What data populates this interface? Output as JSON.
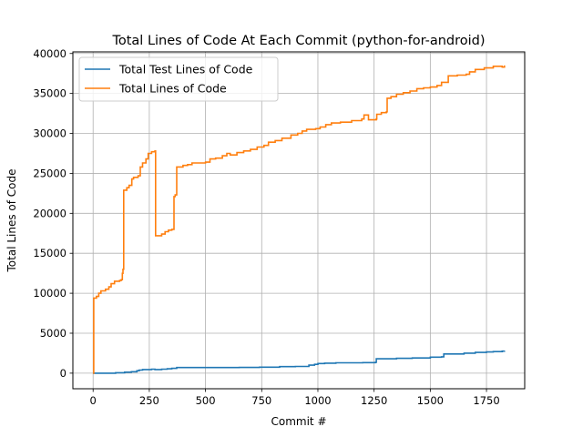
{
  "chart_data": {
    "type": "line",
    "title": "Total Lines of Code At Each Commit (python-for-android)",
    "xlabel": "Commit #",
    "ylabel": "Total Lines of Code",
    "xlim": [
      -90,
      1920
    ],
    "ylim": [
      -1950,
      40200
    ],
    "xticks": [
      0,
      250,
      500,
      750,
      1000,
      1250,
      1500,
      1750
    ],
    "yticks": [
      0,
      5000,
      10000,
      15000,
      20000,
      25000,
      30000,
      35000,
      40000
    ],
    "grid": true,
    "legend_position": "top-left",
    "series": [
      {
        "name": "Total Test Lines of Code",
        "color": "#1f77b4",
        "points": [
          [
            0,
            0
          ],
          [
            100,
            50
          ],
          [
            140,
            120
          ],
          [
            170,
            180
          ],
          [
            195,
            300
          ],
          [
            205,
            380
          ],
          [
            220,
            450
          ],
          [
            260,
            500
          ],
          [
            275,
            450
          ],
          [
            305,
            500
          ],
          [
            330,
            550
          ],
          [
            350,
            600
          ],
          [
            372,
            700
          ],
          [
            500,
            700
          ],
          [
            650,
            720
          ],
          [
            740,
            750
          ],
          [
            830,
            820
          ],
          [
            900,
            840
          ],
          [
            960,
            1000
          ],
          [
            985,
            1100
          ],
          [
            1000,
            1200
          ],
          [
            1030,
            1250
          ],
          [
            1080,
            1300
          ],
          [
            1200,
            1320
          ],
          [
            1256,
            1350
          ],
          [
            1260,
            1800
          ],
          [
            1350,
            1850
          ],
          [
            1420,
            1900
          ],
          [
            1500,
            2000
          ],
          [
            1550,
            2050
          ],
          [
            1560,
            2400
          ],
          [
            1650,
            2500
          ],
          [
            1700,
            2600
          ],
          [
            1750,
            2650
          ],
          [
            1780,
            2700
          ],
          [
            1820,
            2750
          ],
          [
            1830,
            2800
          ]
        ]
      },
      {
        "name": "Total Lines of Code",
        "color": "#ff7f0e",
        "points": [
          [
            0,
            0
          ],
          [
            3,
            9400
          ],
          [
            15,
            9600
          ],
          [
            25,
            10000
          ],
          [
            35,
            10300
          ],
          [
            55,
            10500
          ],
          [
            70,
            10800
          ],
          [
            80,
            11200
          ],
          [
            95,
            11500
          ],
          [
            118,
            11600
          ],
          [
            125,
            11700
          ],
          [
            130,
            12500
          ],
          [
            133,
            13000
          ],
          [
            136,
            22900
          ],
          [
            150,
            23200
          ],
          [
            160,
            23500
          ],
          [
            172,
            24300
          ],
          [
            180,
            24500
          ],
          [
            200,
            24700
          ],
          [
            210,
            25800
          ],
          [
            220,
            26300
          ],
          [
            235,
            26800
          ],
          [
            245,
            27500
          ],
          [
            260,
            27700
          ],
          [
            275,
            27800
          ],
          [
            278,
            17200
          ],
          [
            290,
            17200
          ],
          [
            305,
            17400
          ],
          [
            320,
            17700
          ],
          [
            335,
            17900
          ],
          [
            350,
            18000
          ],
          [
            360,
            22100
          ],
          [
            365,
            22300
          ],
          [
            372,
            25800
          ],
          [
            380,
            25800
          ],
          [
            400,
            26000
          ],
          [
            420,
            26100
          ],
          [
            440,
            26300
          ],
          [
            500,
            26400
          ],
          [
            520,
            26800
          ],
          [
            545,
            26900
          ],
          [
            575,
            27200
          ],
          [
            595,
            27500
          ],
          [
            610,
            27300
          ],
          [
            640,
            27600
          ],
          [
            670,
            27800
          ],
          [
            700,
            28000
          ],
          [
            730,
            28300
          ],
          [
            760,
            28500
          ],
          [
            780,
            28900
          ],
          [
            810,
            29100
          ],
          [
            840,
            29400
          ],
          [
            880,
            29800
          ],
          [
            910,
            30000
          ],
          [
            930,
            30300
          ],
          [
            950,
            30500
          ],
          [
            990,
            30600
          ],
          [
            1010,
            30800
          ],
          [
            1035,
            31100
          ],
          [
            1060,
            31300
          ],
          [
            1100,
            31400
          ],
          [
            1150,
            31600
          ],
          [
            1195,
            31800
          ],
          [
            1205,
            32300
          ],
          [
            1225,
            31700
          ],
          [
            1260,
            31800
          ],
          [
            1262,
            32400
          ],
          [
            1282,
            32600
          ],
          [
            1305,
            32700
          ],
          [
            1308,
            34400
          ],
          [
            1325,
            34600
          ],
          [
            1350,
            34900
          ],
          [
            1380,
            35100
          ],
          [
            1410,
            35300
          ],
          [
            1440,
            35600
          ],
          [
            1470,
            35700
          ],
          [
            1500,
            35800
          ],
          [
            1530,
            36000
          ],
          [
            1550,
            36400
          ],
          [
            1580,
            37200
          ],
          [
            1620,
            37300
          ],
          [
            1660,
            37400
          ],
          [
            1675,
            37700
          ],
          [
            1700,
            38000
          ],
          [
            1740,
            38200
          ],
          [
            1780,
            38400
          ],
          [
            1820,
            38300
          ],
          [
            1830,
            38500
          ]
        ]
      }
    ]
  }
}
